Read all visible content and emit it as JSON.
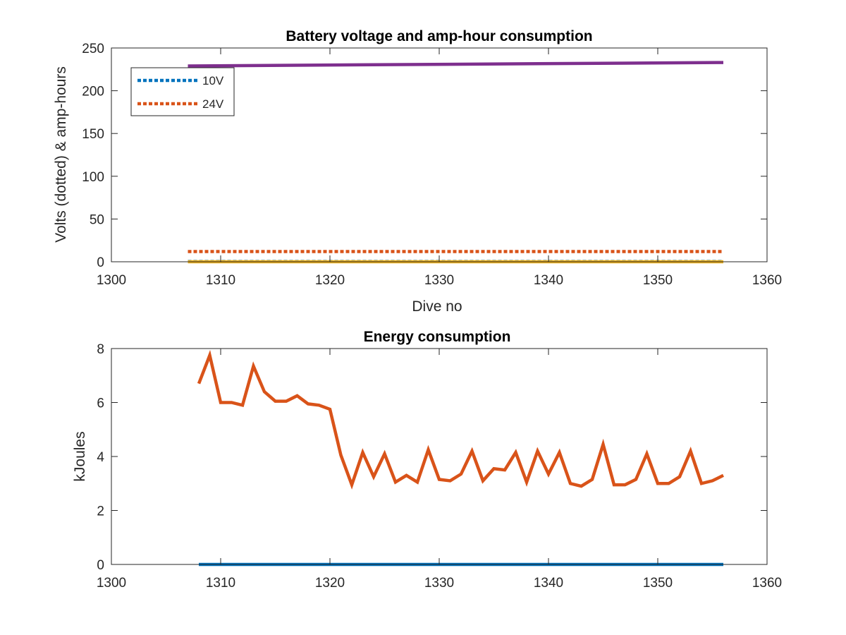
{
  "chart_data": [
    {
      "type": "line",
      "title": "Battery voltage and amp-hour consumption",
      "xlabel": "Dive no",
      "ylabel": "Volts (dotted) & amp-hours",
      "xlim": [
        1300,
        1360
      ],
      "ylim": [
        0,
        250
      ],
      "xticks": [
        1300,
        1310,
        1320,
        1330,
        1340,
        1350,
        1360
      ],
      "yticks": [
        0,
        50,
        100,
        150,
        200,
        250
      ],
      "grid": false,
      "legend_position": "top-left",
      "series": [
        {
          "name": "10V",
          "style": "dotted",
          "color": "#0072BD",
          "x": [
            1307,
            1356
          ],
          "y": [
            0.3,
            0.3
          ]
        },
        {
          "name": "24V",
          "style": "dotted",
          "color": "#D95319",
          "x": [
            1307,
            1356
          ],
          "y": [
            12,
            12
          ]
        },
        {
          "style": "solid",
          "color": "#EDB120",
          "x": [
            1307,
            1356
          ],
          "y": [
            0,
            0
          ]
        },
        {
          "style": "solid",
          "color": "#7E2F8E",
          "x": [
            1307,
            1356
          ],
          "y": [
            229,
            233
          ]
        }
      ]
    },
    {
      "type": "line",
      "title": "Energy consumption",
      "xlabel": "",
      "ylabel": "kJoules",
      "xlim": [
        1300,
        1360
      ],
      "ylim": [
        0,
        8
      ],
      "xticks": [
        1300,
        1310,
        1320,
        1330,
        1340,
        1350,
        1360
      ],
      "yticks": [
        0,
        2,
        4,
        6,
        8
      ],
      "grid": false,
      "series": [
        {
          "style": "solid",
          "color": "#0072BD",
          "x": [
            1308,
            1356
          ],
          "y": [
            0,
            0
          ]
        },
        {
          "style": "solid",
          "color": "#D95319",
          "x": [
            1308,
            1309,
            1310,
            1311,
            1312,
            1313,
            1314,
            1315,
            1316,
            1317,
            1318,
            1319,
            1320,
            1321,
            1322,
            1323,
            1324,
            1325,
            1326,
            1327,
            1328,
            1329,
            1330,
            1331,
            1332,
            1333,
            1334,
            1335,
            1336,
            1337,
            1338,
            1339,
            1340,
            1341,
            1342,
            1343,
            1344,
            1345,
            1346,
            1347,
            1348,
            1349,
            1350,
            1351,
            1352,
            1353,
            1354,
            1355,
            1356
          ],
          "y": [
            6.7,
            7.75,
            6.0,
            6.0,
            5.9,
            7.35,
            6.4,
            6.05,
            6.05,
            6.25,
            5.95,
            5.9,
            5.75,
            4.05,
            2.95,
            4.15,
            3.25,
            4.1,
            3.05,
            3.3,
            3.05,
            4.25,
            3.15,
            3.1,
            3.35,
            4.2,
            3.1,
            3.55,
            3.5,
            4.15,
            3.05,
            4.2,
            3.35,
            4.15,
            3.0,
            2.9,
            3.15,
            4.45,
            2.95,
            2.95,
            3.15,
            4.1,
            3.0,
            3.0,
            3.25,
            4.2,
            3.0,
            3.1,
            3.3
          ]
        }
      ]
    }
  ]
}
